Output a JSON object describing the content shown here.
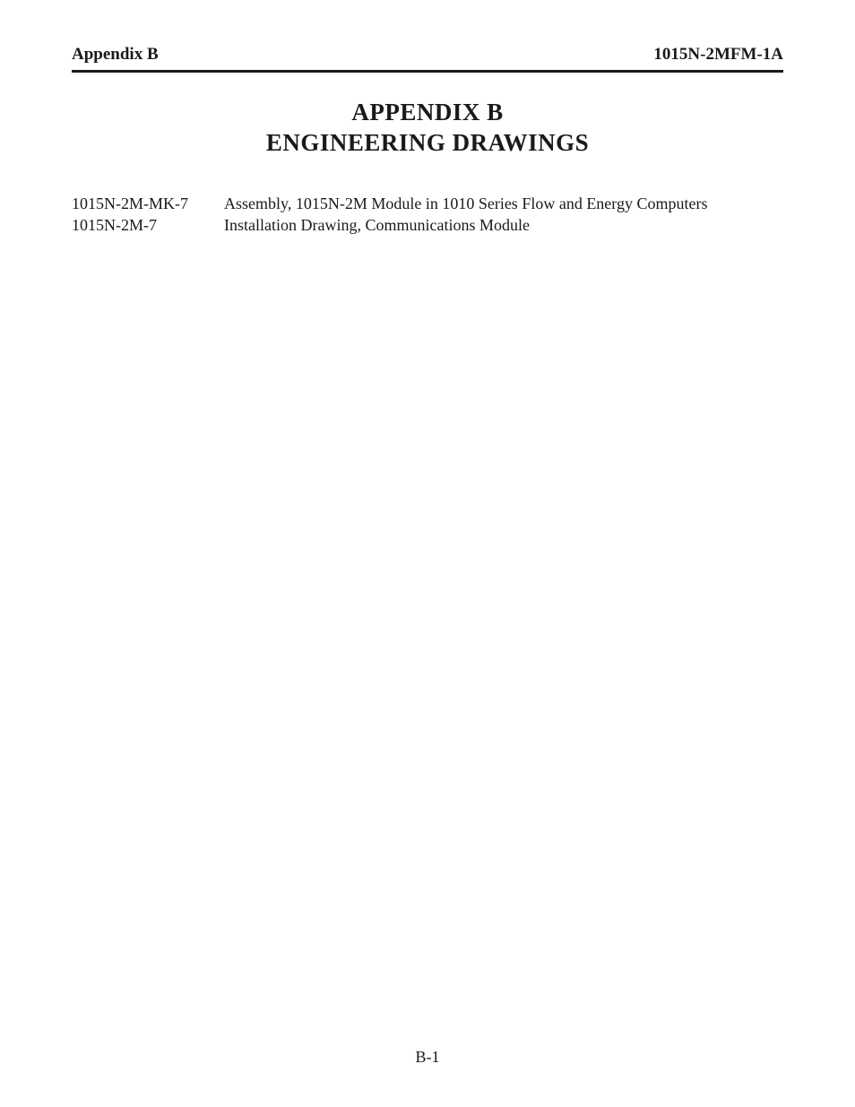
{
  "header": {
    "left": "Appendix B",
    "right": "1015N-2MFM-1A"
  },
  "title": {
    "line1": "APPENDIX B",
    "line2": "ENGINEERING DRAWINGS"
  },
  "entries": [
    {
      "code": "1015N-2M-MK-7",
      "description": "Assembly, 1015N-2M Module in 1010 Series Flow and Energy Computers"
    },
    {
      "code": "1015N-2M-7",
      "description": "Installation Drawing, Communications Module"
    }
  ],
  "page_number": "B-1",
  "colors": {
    "text": "#1a1a1a",
    "background": "#ffffff",
    "rule": "#1a1a1a"
  },
  "typography": {
    "header_fontsize": 19,
    "title_fontsize": 27,
    "body_fontsize": 18,
    "font_family": "Times New Roman"
  }
}
